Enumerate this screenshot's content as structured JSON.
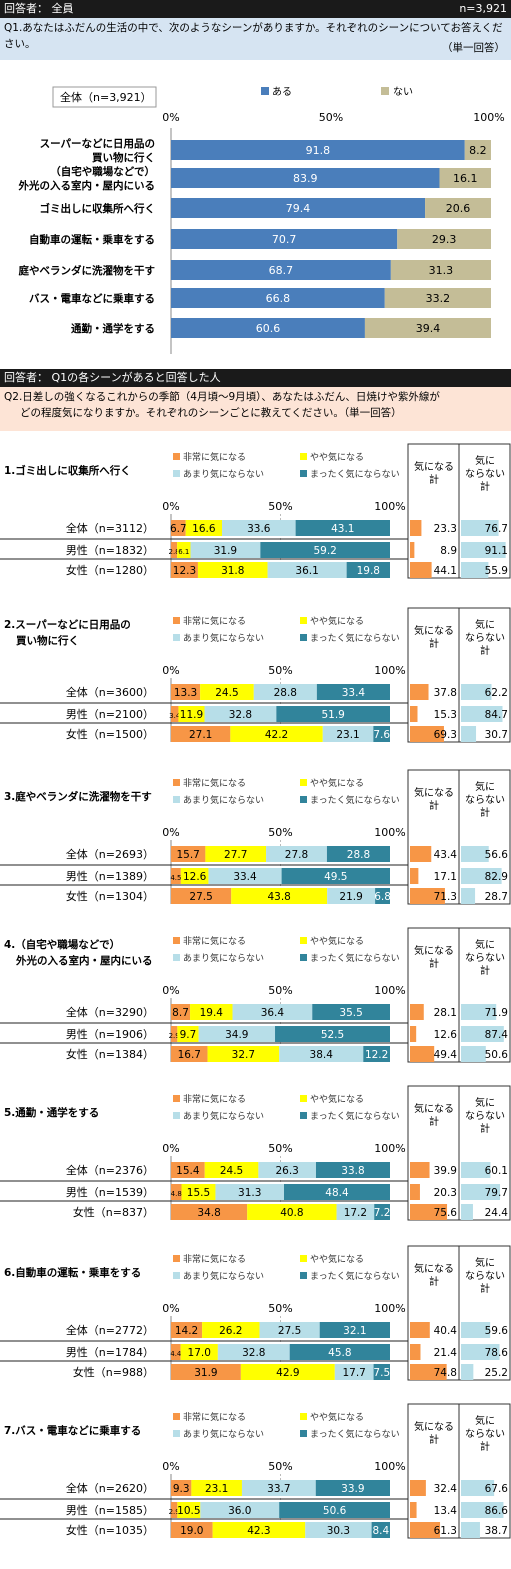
{
  "part1": {
    "respondent": "回答者： 全員",
    "n": "n=3,921",
    "question_line1": "Q1.あなたはふだんの生活の中で、次のようなシーンがありますか。それぞれのシーンについてお答えください。",
    "question_line2": "（単一回答）"
  },
  "part2": {
    "respondent": "回答者： Q1の各シーンがあると回答した人",
    "question_line1": "Q2.日差しの強くなるこれからの季節（4月頃～9月頃）、あなたはふだん、日焼けや紫外線が",
    "question_line2": "どの程度気になりますか。それぞれのシーンごとに教えてください。（単一回答）"
  },
  "colors": {
    "aru": "#4a7ebb",
    "nai": "#c4bd97",
    "very": "#f79646",
    "somewhat": "#ffff00",
    "not_much": "#b7dee8",
    "not_at_all": "#31849b"
  },
  "chart_data": [
    {
      "type": "bar",
      "stacked": true,
      "orientation": "horizontal",
      "sample_label": "全体（n=3,921）",
      "axis_ticks": [
        "0%",
        "50%",
        "100%"
      ],
      "xlim": [
        0,
        100
      ],
      "legend": [
        "ある",
        "ない"
      ],
      "categories": [
        "スーパーなどに日用品の買い物に行く",
        "（自宅や職場などで）外光の入る室内・屋内にいる",
        "ゴミ出しに収集所へ行く",
        "自動車の運転・乗車をする",
        "庭やベランダに洗濯物を干す",
        "バス・電車などに乗車する",
        "通勤・通学をする"
      ],
      "label_lines": [
        [
          "スーパーなどに日用品の",
          "買い物に行く"
        ],
        [
          "（自宅や職場などで）",
          "外光の入る室内・屋内にいる"
        ],
        [
          "ゴミ出しに収集所へ行く"
        ],
        [
          "自動車の運転・乗車をする"
        ],
        [
          "庭やベランダに洗濯物を干す"
        ],
        [
          "バス・電車などに乗車する"
        ],
        [
          "通勤・通学をする"
        ]
      ],
      "series": [
        {
          "name": "ある",
          "values": [
            91.8,
            83.9,
            79.4,
            70.7,
            68.7,
            66.8,
            60.6
          ]
        },
        {
          "name": "ない",
          "values": [
            8.2,
            16.1,
            20.6,
            29.3,
            31.3,
            33.2,
            39.4
          ]
        }
      ]
    },
    {
      "type": "bar",
      "stacked": true,
      "orientation": "horizontal",
      "title": "1.ゴミ出しに収集所へ行く",
      "title_lines": [
        "1.ゴミ出しに収集所へ行く"
      ],
      "categories": [
        "全体（n=3112）",
        "男性（n=1832）",
        "女性（n=1280）"
      ],
      "legend": [
        "非常に気になる",
        "やや気になる",
        "あまり気にならない",
        "まったく気にならない"
      ],
      "axis_ticks": [
        "0%",
        "50%",
        "100%"
      ],
      "summary_headers": [
        "気になる計",
        "気にならない計"
      ],
      "series": [
        {
          "name": "非常に気になる",
          "values": [
            6.7,
            2.8,
            12.3
          ]
        },
        {
          "name": "やや気になる",
          "values": [
            16.6,
            6.1,
            31.8
          ]
        },
        {
          "name": "あまり気にならない",
          "values": [
            33.6,
            31.9,
            36.1
          ]
        },
        {
          "name": "まったく気にならない",
          "values": [
            43.1,
            59.2,
            19.8
          ]
        }
      ],
      "summary": {
        "kininaru": [
          23.3,
          8.9,
          44.1
        ],
        "kininaranai": [
          76.7,
          91.1,
          55.9
        ]
      }
    },
    {
      "type": "bar",
      "stacked": true,
      "orientation": "horizontal",
      "title": "2.スーパーなどに日用品の買い物に行く",
      "title_lines": [
        "2.スーパーなどに日用品の",
        "買い物に行く"
      ],
      "categories": [
        "全体（n=3600）",
        "男性（n=2100）",
        "女性（n=1500）"
      ],
      "legend": [
        "非常に気になる",
        "やや気になる",
        "あまり気にならない",
        "まったく気にならない"
      ],
      "axis_ticks": [
        "0%",
        "50%",
        "100%"
      ],
      "summary_headers": [
        "気になる計",
        "気にならない計"
      ],
      "series": [
        {
          "name": "非常に気になる",
          "values": [
            13.3,
            3.4,
            27.1
          ]
        },
        {
          "name": "やや気になる",
          "values": [
            24.5,
            11.9,
            42.2
          ]
        },
        {
          "name": "あまり気にならない",
          "values": [
            28.8,
            32.8,
            23.1
          ]
        },
        {
          "name": "まったく気にならない",
          "values": [
            33.4,
            51.9,
            7.6
          ]
        }
      ],
      "summary": {
        "kininaru": [
          37.8,
          15.3,
          69.3
        ],
        "kininaranai": [
          62.2,
          84.7,
          30.7
        ]
      }
    },
    {
      "type": "bar",
      "stacked": true,
      "orientation": "horizontal",
      "title": "3.庭やベランダに洗濯物を干す",
      "title_lines": [
        "3.庭やベランダに洗濯物を干す"
      ],
      "categories": [
        "全体（n=2693）",
        "男性（n=1389）",
        "女性（n=1304）"
      ],
      "legend": [
        "非常に気になる",
        "やや気になる",
        "あまり気にならない",
        "まったく気にならない"
      ],
      "axis_ticks": [
        "0%",
        "50%",
        "100%"
      ],
      "summary_headers": [
        "気になる計",
        "気にならない計"
      ],
      "series": [
        {
          "name": "非常に気になる",
          "values": [
            15.7,
            4.5,
            27.5
          ]
        },
        {
          "name": "やや気になる",
          "values": [
            27.7,
            12.6,
            43.8
          ]
        },
        {
          "name": "あまり気にならない",
          "values": [
            27.8,
            33.4,
            21.9
          ]
        },
        {
          "name": "まったく気にならない",
          "values": [
            28.8,
            49.5,
            6.8
          ]
        }
      ],
      "summary": {
        "kininaru": [
          43.4,
          17.1,
          71.3
        ],
        "kininaranai": [
          56.6,
          82.9,
          28.7
        ]
      }
    },
    {
      "type": "bar",
      "stacked": true,
      "orientation": "horizontal",
      "title": "4.（自宅や職場などで）外光の入る室内・屋内にいる",
      "title_lines": [
        "4.（自宅や職場などで）",
        "外光の入る室内・屋内にいる"
      ],
      "categories": [
        "全体（n=3290）",
        "男性（n=1906）",
        "女性（n=1384）"
      ],
      "legend": [
        "非常に気になる",
        "やや気になる",
        "あまり気にならない",
        "まったく気にならない"
      ],
      "axis_ticks": [
        "0%",
        "50%",
        "100%"
      ],
      "summary_headers": [
        "気になる計",
        "気にならない計"
      ],
      "series": [
        {
          "name": "非常に気になる",
          "values": [
            8.7,
            2.9,
            16.7
          ]
        },
        {
          "name": "やや気になる",
          "values": [
            19.4,
            9.7,
            32.7
          ]
        },
        {
          "name": "あまり気にならない",
          "values": [
            36.4,
            34.9,
            38.4
          ]
        },
        {
          "name": "まったく気にならない",
          "values": [
            35.5,
            52.5,
            12.2
          ]
        }
      ],
      "summary": {
        "kininaru": [
          28.1,
          12.6,
          49.4
        ],
        "kininaranai": [
          71.9,
          87.4,
          50.6
        ]
      }
    },
    {
      "type": "bar",
      "stacked": true,
      "orientation": "horizontal",
      "title": "5.通勤・通学をする",
      "title_lines": [
        "5.通勤・通学をする"
      ],
      "categories": [
        "全体（n=2376）",
        "男性（n=1539）",
        "女性（n=837）"
      ],
      "legend": [
        "非常に気になる",
        "やや気になる",
        "あまり気にならない",
        "まったく気にならない"
      ],
      "axis_ticks": [
        "0%",
        "50%",
        "100%"
      ],
      "summary_headers": [
        "気になる計",
        "気にならない計"
      ],
      "series": [
        {
          "name": "非常に気になる",
          "values": [
            15.4,
            4.8,
            34.8
          ]
        },
        {
          "name": "やや気になる",
          "values": [
            24.5,
            15.5,
            40.8
          ]
        },
        {
          "name": "あまり気にならない",
          "values": [
            26.3,
            31.3,
            17.2
          ]
        },
        {
          "name": "まったく気にならない",
          "values": [
            33.8,
            48.4,
            7.2
          ]
        }
      ],
      "summary": {
        "kininaru": [
          39.9,
          20.3,
          75.6
        ],
        "kininaranai": [
          60.1,
          79.7,
          24.4
        ]
      }
    },
    {
      "type": "bar",
      "stacked": true,
      "orientation": "horizontal",
      "title": "6.自動車の運転・乗車をする",
      "title_lines": [
        "6.自動車の運転・乗車をする"
      ],
      "categories": [
        "全体（n=2772）",
        "男性（n=1784）",
        "女性（n=988）"
      ],
      "legend": [
        "非常に気になる",
        "やや気になる",
        "あまり気にならない",
        "まったく気にならない"
      ],
      "axis_ticks": [
        "0%",
        "50%",
        "100%"
      ],
      "summary_headers": [
        "気になる計",
        "気にならない計"
      ],
      "series": [
        {
          "name": "非常に気になる",
          "values": [
            14.2,
            4.4,
            31.9
          ]
        },
        {
          "name": "やや気になる",
          "values": [
            26.2,
            17.0,
            42.9
          ]
        },
        {
          "name": "あまり気にならない",
          "values": [
            27.5,
            32.8,
            17.7
          ]
        },
        {
          "name": "まったく気にならない",
          "values": [
            32.1,
            45.8,
            7.5
          ]
        }
      ],
      "summary": {
        "kininaru": [
          40.4,
          21.4,
          74.8
        ],
        "kininaranai": [
          59.6,
          78.6,
          25.2
        ]
      }
    },
    {
      "type": "bar",
      "stacked": true,
      "orientation": "horizontal",
      "title": "7.バス・電車などに乗車する",
      "title_lines": [
        "7.バス・電車などに乗車する"
      ],
      "categories": [
        "全体（n=2620）",
        "男性（n=1585）",
        "女性（n=1035）"
      ],
      "legend": [
        "非常に気になる",
        "やや気になる",
        "あまり気にならない",
        "まったく気にならない"
      ],
      "axis_ticks": [
        "0%",
        "50%",
        "100%"
      ],
      "summary_headers": [
        "気になる計",
        "気にならない計"
      ],
      "series": [
        {
          "name": "非常に気になる",
          "values": [
            9.3,
            2.9,
            19.0
          ]
        },
        {
          "name": "やや気になる",
          "values": [
            23.1,
            10.5,
            42.3
          ]
        },
        {
          "name": "あまり気にならない",
          "values": [
            33.7,
            36.0,
            30.3
          ]
        },
        {
          "name": "まったく気にならない",
          "values": [
            33.9,
            50.6,
            8.4
          ]
        }
      ],
      "summary": {
        "kininaru": [
          32.4,
          13.4,
          61.3
        ],
        "kininaranai": [
          67.6,
          86.6,
          38.7
        ]
      }
    }
  ]
}
